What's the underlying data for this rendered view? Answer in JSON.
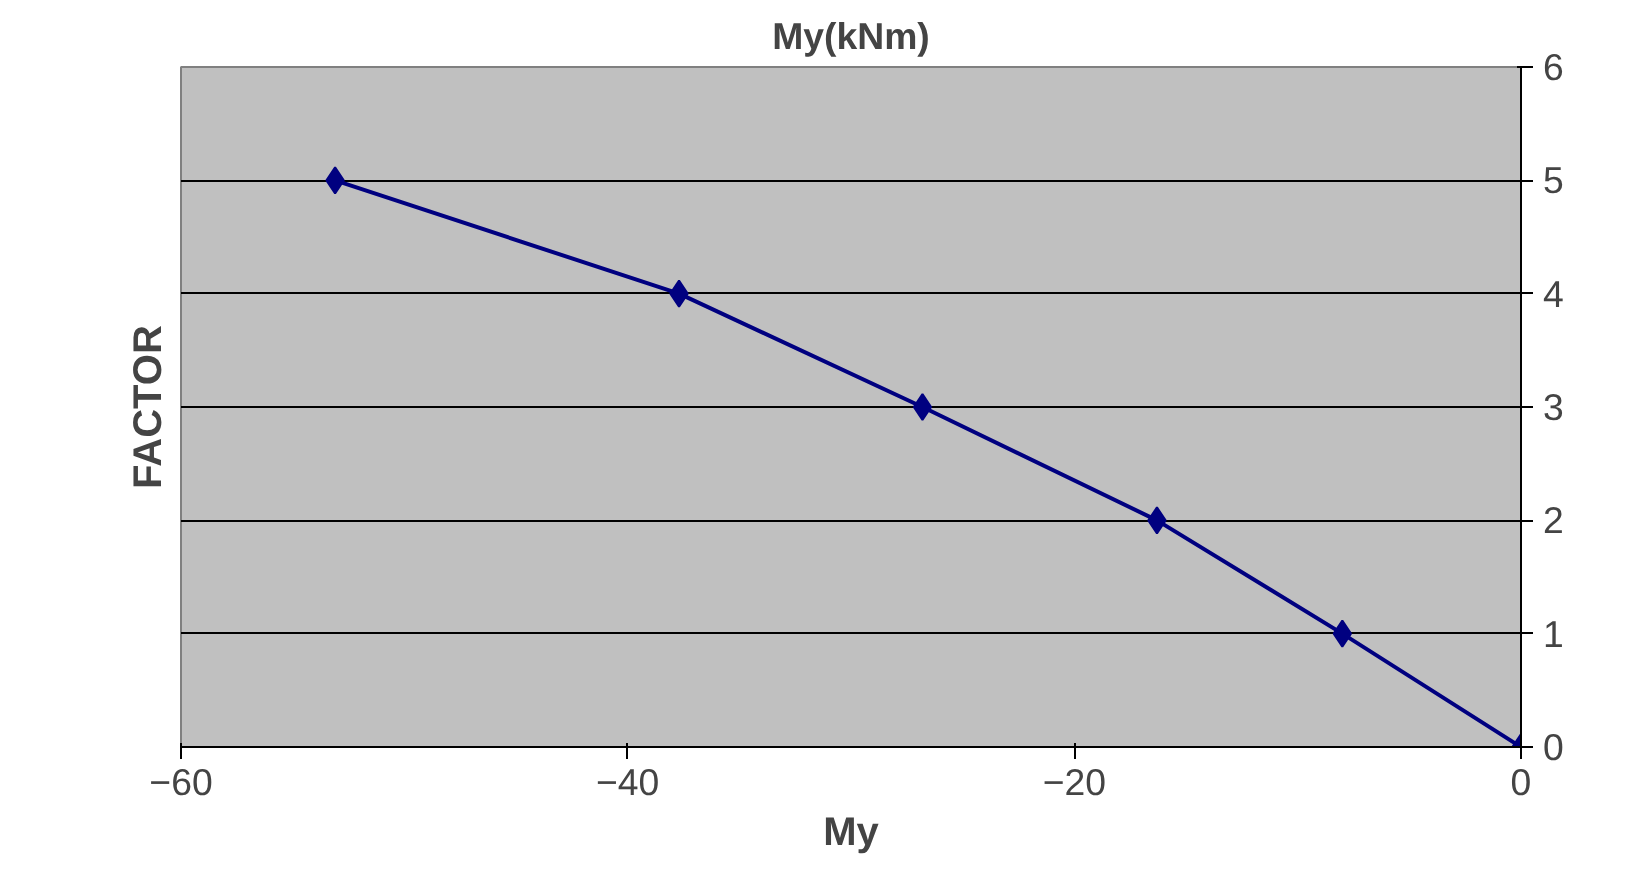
{
  "chart_data": {
    "type": "line",
    "title": "My(kNm)",
    "xlabel": "My",
    "ylabel": "FACTOR",
    "x": [
      -53.1,
      -37.7,
      -26.8,
      -16.3,
      -8.0,
      0
    ],
    "series": [
      {
        "color": "#000080",
        "values": [
          5,
          4,
          3,
          2,
          1,
          0
        ]
      }
    ],
    "xlim": [
      -60,
      0
    ],
    "xticks": [
      -60,
      -40,
      -20,
      0
    ],
    "ylim": [
      0,
      6
    ],
    "yticks": [
      0,
      1,
      2,
      3,
      4,
      5,
      6
    ],
    "grid": "y",
    "marker": "diamond",
    "line_style": "solid"
  }
}
